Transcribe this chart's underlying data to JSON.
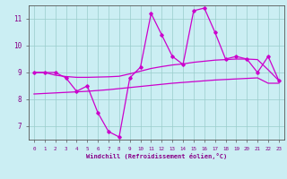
{
  "xlabel": "Windchill (Refroidissement éolien,°C)",
  "bg_color": "#cbeef3",
  "line_color": "#cc00cc",
  "grid_color": "#99cccc",
  "x_hours": [
    0,
    1,
    2,
    3,
    4,
    5,
    6,
    7,
    8,
    9,
    10,
    11,
    12,
    13,
    14,
    15,
    16,
    17,
    18,
    19,
    20,
    21,
    22,
    23
  ],
  "main_data": [
    9.0,
    9.0,
    9.0,
    8.8,
    8.3,
    8.5,
    7.5,
    6.8,
    6.6,
    8.8,
    9.2,
    11.2,
    10.4,
    9.6,
    9.3,
    11.3,
    11.4,
    10.5,
    9.5,
    9.6,
    9.5,
    9.0,
    9.6,
    8.7
  ],
  "trend1_y": [
    9.0,
    9.0,
    8.9,
    8.85,
    8.82,
    8.82,
    8.83,
    8.84,
    8.86,
    8.95,
    9.05,
    9.15,
    9.22,
    9.28,
    9.32,
    9.38,
    9.42,
    9.46,
    9.48,
    9.5,
    9.5,
    9.48,
    9.1,
    8.7
  ],
  "trend2_y": [
    8.2,
    8.22,
    8.24,
    8.26,
    8.28,
    8.3,
    8.33,
    8.36,
    8.4,
    8.44,
    8.48,
    8.52,
    8.56,
    8.6,
    8.63,
    8.66,
    8.69,
    8.72,
    8.74,
    8.76,
    8.78,
    8.8,
    8.6,
    8.6
  ],
  "ylim": [
    6.5,
    11.5
  ],
  "yticks": [
    7,
    8,
    9,
    10,
    11
  ],
  "axis_color": "#880088",
  "spine_color": "#555555"
}
